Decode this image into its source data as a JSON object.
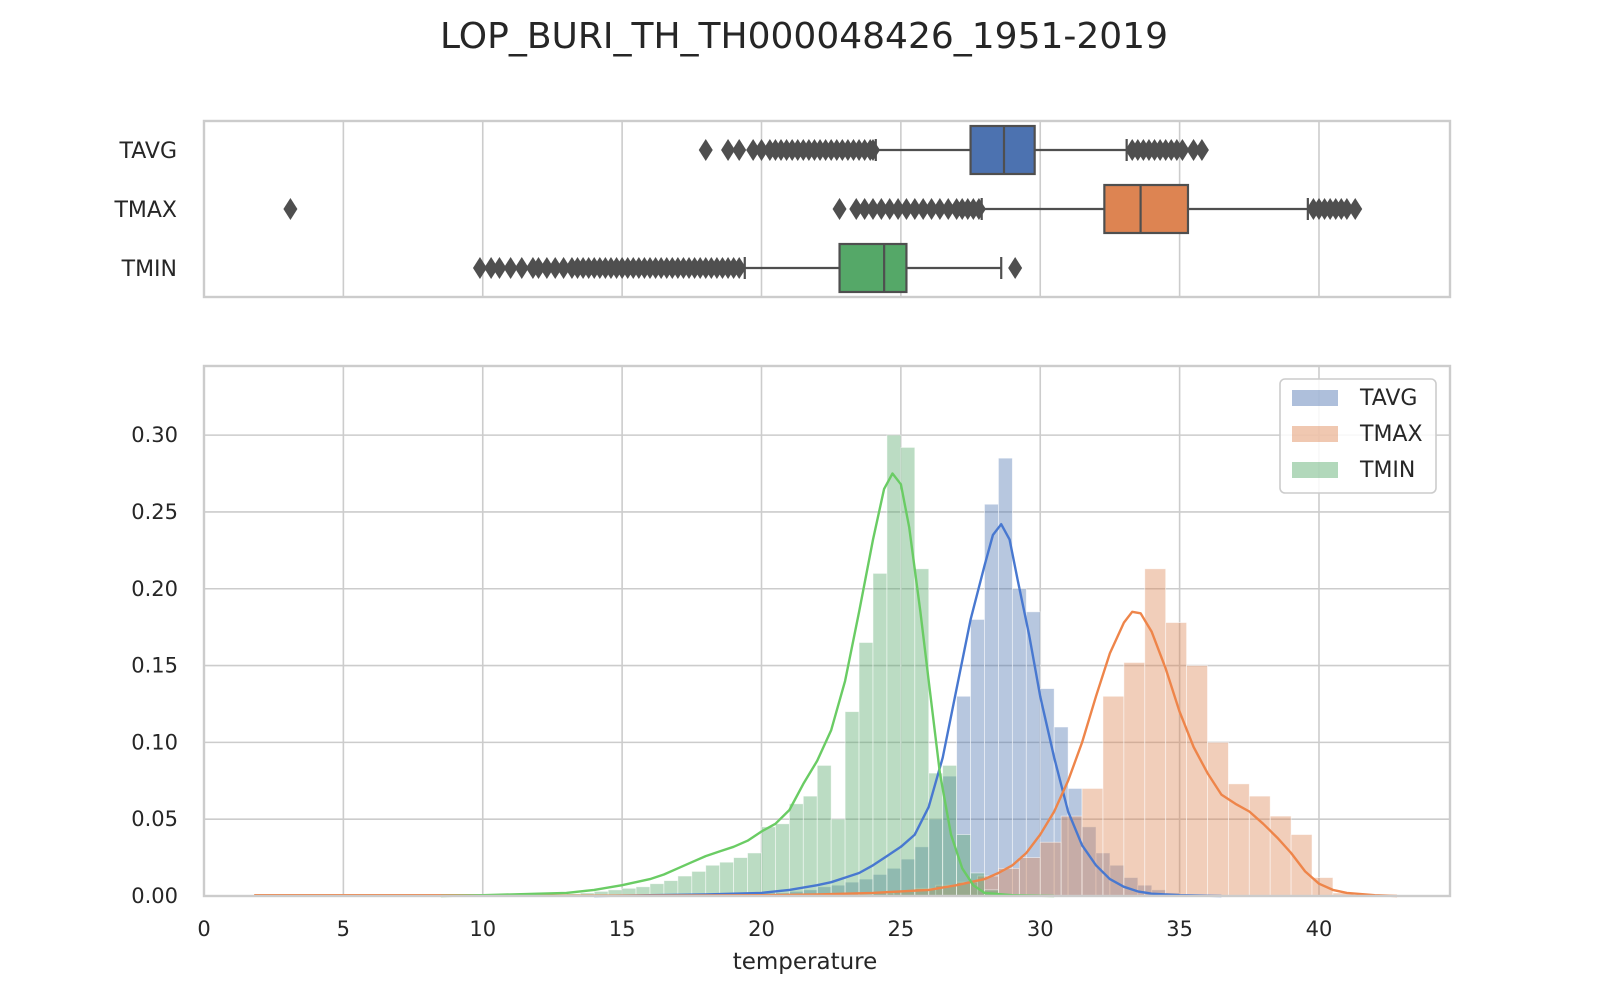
{
  "colors": {
    "TAVG": "#4c72b0",
    "TMAX": "#dd8452",
    "TMIN": "#55a868",
    "TAVG_line": "#4878d0",
    "TMAX_line": "#ee854a",
    "TMIN_line": "#6acc64",
    "grid": "#cccccc",
    "frame": "#cccccc",
    "box_edge": "#4f4f4f"
  },
  "chart_data": [
    {
      "type": "box",
      "title": "LOP_BURI_TH_TH000048426_1951-2019",
      "xlabel": "",
      "xlim": [
        0,
        44.7
      ],
      "categories": [
        "TAVG",
        "TMAX",
        "TMIN"
      ],
      "boxes": [
        {
          "name": "TAVG",
          "q1": 27.5,
          "median": 28.7,
          "q3": 29.8,
          "whisker_low": 24.1,
          "whisker_high": 33.1,
          "outliers": [
            18.0,
            18.8,
            19.2,
            19.7,
            20.0,
            20.3,
            20.5,
            20.7,
            20.9,
            21.1,
            21.3,
            21.5,
            21.7,
            21.9,
            22.1,
            22.3,
            22.5,
            22.7,
            22.9,
            23.1,
            23.3,
            23.5,
            23.7,
            23.9,
            24.0,
            33.3,
            33.5,
            33.7,
            33.9,
            34.1,
            34.3,
            34.5,
            34.7,
            34.9,
            35.1,
            35.5,
            35.8
          ]
        },
        {
          "name": "TMAX",
          "q1": 32.3,
          "median": 33.6,
          "q3": 35.3,
          "whisker_low": 27.9,
          "whisker_high": 39.6,
          "outliers": [
            3.1,
            22.8,
            23.4,
            23.7,
            24.0,
            24.3,
            24.6,
            24.9,
            25.2,
            25.5,
            25.8,
            26.1,
            26.4,
            26.7,
            27.0,
            27.2,
            27.4,
            27.6,
            27.8,
            39.8,
            40.0,
            40.2,
            40.4,
            40.6,
            40.8,
            41.0,
            41.3
          ]
        },
        {
          "name": "TMIN",
          "q1": 22.8,
          "median": 24.4,
          "q3": 25.2,
          "whisker_low": 19.4,
          "whisker_high": 28.6,
          "outliers": [
            9.9,
            10.3,
            10.6,
            11.0,
            11.4,
            11.8,
            12.0,
            12.3,
            12.6,
            12.9,
            13.2,
            13.4,
            13.6,
            13.8,
            14.0,
            14.2,
            14.4,
            14.6,
            14.8,
            15.0,
            15.2,
            15.4,
            15.6,
            15.8,
            16.0,
            16.2,
            16.4,
            16.6,
            16.8,
            17.0,
            17.2,
            17.4,
            17.6,
            17.8,
            18.0,
            18.2,
            18.4,
            18.6,
            18.8,
            19.0,
            19.2,
            29.1
          ]
        }
      ]
    },
    {
      "type": "histogram_kde",
      "xlabel": "temperature",
      "ylabel": "",
      "xlim": [
        0,
        44.7
      ],
      "ylim": [
        0,
        0.345
      ],
      "xticks": [
        0,
        5,
        10,
        15,
        20,
        25,
        30,
        35,
        40
      ],
      "yticks": [
        "0.00",
        "0.05",
        "0.10",
        "0.15",
        "0.20",
        "0.25",
        "0.30"
      ],
      "legend_position": "top-right",
      "series": [
        {
          "name": "TAVG",
          "bin_width": 0.5,
          "bins": [
            [
              18.0,
              0.0005
            ],
            [
              18.5,
              0.0005
            ],
            [
              19.0,
              0.001
            ],
            [
              19.5,
              0.001
            ],
            [
              20.0,
              0.002
            ],
            [
              20.5,
              0.002
            ],
            [
              21.0,
              0.003
            ],
            [
              21.5,
              0.004
            ],
            [
              22.0,
              0.006
            ],
            [
              22.5,
              0.007
            ],
            [
              23.0,
              0.009
            ],
            [
              23.5,
              0.011
            ],
            [
              24.0,
              0.014
            ],
            [
              24.5,
              0.018
            ],
            [
              25.0,
              0.024
            ],
            [
              25.5,
              0.032
            ],
            [
              26.0,
              0.05
            ],
            [
              26.5,
              0.078
            ],
            [
              27.0,
              0.13
            ],
            [
              27.5,
              0.18
            ],
            [
              28.0,
              0.255
            ],
            [
              28.5,
              0.285
            ],
            [
              29.0,
              0.2
            ],
            [
              29.5,
              0.185
            ],
            [
              30.0,
              0.135
            ],
            [
              30.5,
              0.11
            ],
            [
              31.0,
              0.07
            ],
            [
              31.5,
              0.045
            ],
            [
              32.0,
              0.028
            ],
            [
              32.5,
              0.02
            ],
            [
              33.0,
              0.012
            ],
            [
              33.5,
              0.007
            ],
            [
              34.0,
              0.004
            ],
            [
              34.5,
              0.002
            ],
            [
              35.0,
              0.001
            ],
            [
              35.5,
              0.0005
            ]
          ],
          "kde": [
            [
              14.0,
              0
            ],
            [
              16,
              0.0005
            ],
            [
              18,
              0.001
            ],
            [
              20,
              0.002
            ],
            [
              21,
              0.004
            ],
            [
              22,
              0.007
            ],
            [
              22.5,
              0.009
            ],
            [
              23,
              0.012
            ],
            [
              23.5,
              0.015
            ],
            [
              24,
              0.02
            ],
            [
              24.5,
              0.026
            ],
            [
              25,
              0.032
            ],
            [
              25.5,
              0.04
            ],
            [
              26,
              0.058
            ],
            [
              26.5,
              0.09
            ],
            [
              27,
              0.135
            ],
            [
              27.5,
              0.18
            ],
            [
              28,
              0.215
            ],
            [
              28.3,
              0.235
            ],
            [
              28.6,
              0.242
            ],
            [
              28.9,
              0.232
            ],
            [
              29.2,
              0.205
            ],
            [
              29.6,
              0.17
            ],
            [
              30,
              0.13
            ],
            [
              30.5,
              0.09
            ],
            [
              31,
              0.055
            ],
            [
              31.5,
              0.033
            ],
            [
              32,
              0.02
            ],
            [
              32.5,
              0.011
            ],
            [
              33,
              0.006
            ],
            [
              33.5,
              0.003
            ],
            [
              34,
              0.0015
            ],
            [
              35,
              0.0005
            ],
            [
              36.5,
              0
            ]
          ]
        },
        {
          "name": "TMAX",
          "bin_width": 0.75,
          "bins": [
            [
              2.0,
              0.0005
            ],
            [
              2.75,
              0.0005
            ],
            [
              3.5,
              0.0005
            ],
            [
              4.25,
              0.0005
            ],
            [
              5.0,
              0.0005
            ],
            [
              5.75,
              0.0005
            ],
            [
              6.5,
              0.0005
            ],
            [
              7.25,
              0.0005
            ],
            [
              8.0,
              0.0005
            ],
            [
              8.75,
              0.0005
            ],
            [
              22.5,
              0.0005
            ],
            [
              23.25,
              0.001
            ],
            [
              24.0,
              0.002
            ],
            [
              24.75,
              0.003
            ],
            [
              25.5,
              0.005
            ],
            [
              26.25,
              0.007
            ],
            [
              27.0,
              0.009
            ],
            [
              27.75,
              0.013
            ],
            [
              28.5,
              0.018
            ],
            [
              29.25,
              0.025
            ],
            [
              30.0,
              0.035
            ],
            [
              30.75,
              0.052
            ],
            [
              31.5,
              0.07
            ],
            [
              32.25,
              0.13
            ],
            [
              33.0,
              0.152
            ],
            [
              33.75,
              0.213
            ],
            [
              34.5,
              0.178
            ],
            [
              35.25,
              0.15
            ],
            [
              36.0,
              0.1
            ],
            [
              36.75,
              0.073
            ],
            [
              37.5,
              0.065
            ],
            [
              38.25,
              0.052
            ],
            [
              39.0,
              0.04
            ],
            [
              39.75,
              0.012
            ],
            [
              40.5,
              0.002
            ],
            [
              41.25,
              0.0005
            ]
          ],
          "kde": [
            [
              1.8,
              0.0005
            ],
            [
              9.5,
              0.0005
            ],
            [
              12,
              0.0002
            ],
            [
              18,
              0.0003
            ],
            [
              20,
              0.0005
            ],
            [
              22,
              0.001
            ],
            [
              24,
              0.002
            ],
            [
              26,
              0.004
            ],
            [
              27,
              0.007
            ],
            [
              28,
              0.011
            ],
            [
              28.5,
              0.015
            ],
            [
              29,
              0.02
            ],
            [
              29.5,
              0.028
            ],
            [
              30,
              0.04
            ],
            [
              30.5,
              0.055
            ],
            [
              31,
              0.075
            ],
            [
              31.5,
              0.1
            ],
            [
              32,
              0.13
            ],
            [
              32.5,
              0.158
            ],
            [
              33,
              0.178
            ],
            [
              33.3,
              0.185
            ],
            [
              33.6,
              0.184
            ],
            [
              34,
              0.172
            ],
            [
              34.5,
              0.148
            ],
            [
              35,
              0.12
            ],
            [
              35.5,
              0.097
            ],
            [
              36,
              0.08
            ],
            [
              36.5,
              0.066
            ],
            [
              37,
              0.06
            ],
            [
              37.5,
              0.055
            ],
            [
              38,
              0.047
            ],
            [
              38.5,
              0.038
            ],
            [
              39,
              0.028
            ],
            [
              39.5,
              0.016
            ],
            [
              40,
              0.008
            ],
            [
              40.5,
              0.004
            ],
            [
              41,
              0.002
            ],
            [
              42,
              0.0005
            ],
            [
              42.8,
              0
            ]
          ]
        },
        {
          "name": "TMIN",
          "bin_width": 0.5,
          "bins": [
            [
              9.0,
              0.0003
            ],
            [
              9.5,
              0.0003
            ],
            [
              10.0,
              0.0005
            ],
            [
              10.5,
              0.0005
            ],
            [
              11.0,
              0.0005
            ],
            [
              11.5,
              0.0008
            ],
            [
              12.0,
              0.001
            ],
            [
              12.5,
              0.0012
            ],
            [
              13.0,
              0.0015
            ],
            [
              13.5,
              0.002
            ],
            [
              14.0,
              0.003
            ],
            [
              14.5,
              0.004
            ],
            [
              15.0,
              0.005
            ],
            [
              15.5,
              0.006
            ],
            [
              16.0,
              0.008
            ],
            [
              16.5,
              0.01
            ],
            [
              17.0,
              0.013
            ],
            [
              17.5,
              0.016
            ],
            [
              18.0,
              0.02
            ],
            [
              18.5,
              0.022
            ],
            [
              19.0,
              0.025
            ],
            [
              19.5,
              0.028
            ],
            [
              20.0,
              0.045
            ],
            [
              20.5,
              0.047
            ],
            [
              21.0,
              0.06
            ],
            [
              21.5,
              0.065
            ],
            [
              22.0,
              0.085
            ],
            [
              22.5,
              0.05
            ],
            [
              23.0,
              0.12
            ],
            [
              23.5,
              0.165
            ],
            [
              24.0,
              0.21
            ],
            [
              24.5,
              0.3
            ],
            [
              25.0,
              0.292
            ],
            [
              25.5,
              0.213
            ],
            [
              26.0,
              0.08
            ],
            [
              26.5,
              0.085
            ],
            [
              27.0,
              0.04
            ],
            [
              27.5,
              0.015
            ],
            [
              28.0,
              0.004
            ],
            [
              28.5,
              0.001
            ]
          ],
          "kde": [
            [
              8.5,
              0
            ],
            [
              10,
              0.0005
            ],
            [
              12,
              0.0015
            ],
            [
              13,
              0.002
            ],
            [
              14,
              0.004
            ],
            [
              15,
              0.007
            ],
            [
              16,
              0.011
            ],
            [
              16.5,
              0.014
            ],
            [
              17,
              0.018
            ],
            [
              17.5,
              0.022
            ],
            [
              18,
              0.026
            ],
            [
              18.5,
              0.029
            ],
            [
              19,
              0.032
            ],
            [
              19.5,
              0.036
            ],
            [
              20,
              0.042
            ],
            [
              20.5,
              0.047
            ],
            [
              21,
              0.056
            ],
            [
              21.5,
              0.073
            ],
            [
              22,
              0.088
            ],
            [
              22.5,
              0.108
            ],
            [
              23,
              0.14
            ],
            [
              23.5,
              0.185
            ],
            [
              24,
              0.232
            ],
            [
              24.4,
              0.265
            ],
            [
              24.7,
              0.275
            ],
            [
              25,
              0.268
            ],
            [
              25.3,
              0.24
            ],
            [
              25.7,
              0.185
            ],
            [
              26,
              0.14
            ],
            [
              26.4,
              0.08
            ],
            [
              26.8,
              0.04
            ],
            [
              27.2,
              0.018
            ],
            [
              27.6,
              0.007
            ],
            [
              28,
              0.002
            ],
            [
              29,
              0.0005
            ],
            [
              30.5,
              0
            ]
          ]
        }
      ]
    }
  ]
}
